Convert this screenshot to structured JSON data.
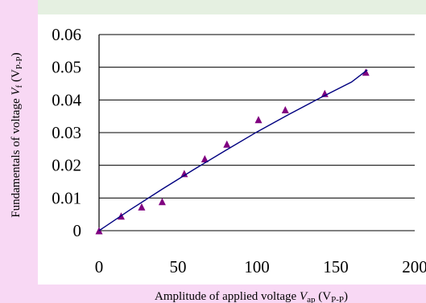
{
  "chart_data": {
    "type": "scatter",
    "xlabel": "Amplitude of applied voltage",
    "xlabel_var": "V",
    "xlabel_sub": "ap",
    "xlabel_unit_open": " (V",
    "xlabel_unit_sub": "P-P",
    "xlabel_unit_close": ")",
    "ylabel": "Fundamentals of voltage",
    "ylabel_var": "V",
    "ylabel_sub": "f",
    "ylabel_unit_open": " (V",
    "ylabel_unit_sub": "P-P",
    "ylabel_unit_close": ")",
    "xlim": [
      0,
      200
    ],
    "ylim": [
      0,
      0.06
    ],
    "x_ticks": [
      "0",
      "50",
      "100",
      "150",
      "200"
    ],
    "y_ticks": [
      "0",
      "0.01",
      "0.02",
      "0.03",
      "0.04",
      "0.05",
      "0.06"
    ],
    "grid": "horizontal",
    "series": [
      {
        "marker": "triangle",
        "color": "#800080",
        "points": [
          [
            0,
            0.0
          ],
          [
            14,
            0.0045
          ],
          [
            27,
            0.0073
          ],
          [
            40,
            0.0089
          ],
          [
            54,
            0.0175
          ],
          [
            67,
            0.022
          ],
          [
            81,
            0.0265
          ],
          [
            101,
            0.034
          ],
          [
            118,
            0.037
          ],
          [
            143,
            0.042
          ],
          [
            169,
            0.0485
          ]
        ]
      },
      {
        "marker": "line",
        "color": "#000080",
        "points": [
          [
            0,
            0.0
          ],
          [
            20,
            0.0065
          ],
          [
            40,
            0.0127
          ],
          [
            60,
            0.0187
          ],
          [
            80,
            0.0245
          ],
          [
            100,
            0.0302
          ],
          [
            120,
            0.0355
          ],
          [
            140,
            0.0406
          ],
          [
            160,
            0.0455
          ],
          [
            170,
            0.0492
          ]
        ]
      }
    ]
  }
}
